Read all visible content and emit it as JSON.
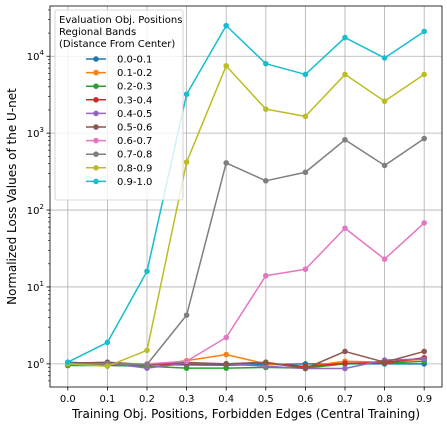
{
  "chart_data": {
    "type": "line",
    "xlabel": "Training Obj. Positions, Forbidden Edges (Central Training)",
    "ylabel": "Normalized Loss Values of the U-net",
    "x": [
      0.0,
      0.1,
      0.2,
      0.3,
      0.4,
      0.5,
      0.6,
      0.7,
      0.8,
      0.9
    ],
    "x_tick_labels": [
      "0.0",
      "0.1",
      "0.2",
      "0.3",
      "0.4",
      "0.5",
      "0.6",
      "0.7",
      "0.8",
      "0.9"
    ],
    "xlim": [
      -0.045,
      0.945
    ],
    "yscale": "log",
    "ylim": [
      0.5,
      45000
    ],
    "y_tick_labels": [
      "10^0",
      "10^1",
      "10^2",
      "10^3",
      "10^4"
    ],
    "grid": true,
    "legend": {
      "title_lines": [
        "Evaluation Obj. Positions",
        "Regional Bands",
        "(Distance From Center)"
      ],
      "placement": "top-left"
    },
    "series": [
      {
        "name": "0.0-0.1",
        "color": "#1f77b4",
        "values": [
          1.05,
          1.0,
          0.97,
          0.97,
          0.96,
          0.98,
          1.0,
          1.0,
          1.0,
          1.0
        ]
      },
      {
        "name": "0.1-0.2",
        "color": "#ff7f0e",
        "values": [
          0.98,
          0.97,
          0.95,
          1.1,
          1.32,
          1.0,
          0.92,
          1.08,
          1.05,
          1.15
        ]
      },
      {
        "name": "0.2-0.3",
        "color": "#2ca02c",
        "values": [
          0.95,
          0.95,
          0.93,
          0.88,
          0.88,
          0.9,
          0.88,
          1.0,
          1.02,
          1.08
        ]
      },
      {
        "name": "0.3-0.4",
        "color": "#d62728",
        "values": [
          1.0,
          1.0,
          0.97,
          1.0,
          1.0,
          1.03,
          0.92,
          1.02,
          1.03,
          1.2
        ]
      },
      {
        "name": "0.4-0.5",
        "color": "#9467bd",
        "values": [
          1.0,
          1.02,
          0.88,
          1.02,
          1.0,
          0.93,
          0.87,
          0.87,
          1.12,
          1.15
        ]
      },
      {
        "name": "0.5-0.6",
        "color": "#8c564b",
        "values": [
          1.02,
          1.05,
          0.98,
          1.04,
          1.0,
          1.05,
          0.87,
          1.45,
          1.05,
          1.45
        ]
      },
      {
        "name": "0.6-0.7",
        "color": "#e377c2",
        "values": [
          1.0,
          1.0,
          1.0,
          1.08,
          2.2,
          14.0,
          17.0,
          58.0,
          23.0,
          68.0
        ]
      },
      {
        "name": "0.7-0.8",
        "color": "#7f7f7f",
        "values": [
          1.0,
          1.0,
          0.98,
          4.3,
          410.0,
          240.0,
          310.0,
          820.0,
          380.0,
          850.0
        ]
      },
      {
        "name": "0.8-0.9",
        "color": "#bcbd22",
        "values": [
          1.0,
          0.93,
          1.5,
          420.0,
          7500.0,
          2050.0,
          1650.0,
          5800.0,
          2600.0,
          5800.0
        ]
      },
      {
        "name": "0.9-1.0",
        "color": "#17becf",
        "values": [
          1.05,
          1.9,
          16.0,
          3200.0,
          25000.0,
          8000.0,
          5800.0,
          17500.0,
          9500.0,
          21000.0
        ]
      }
    ]
  }
}
